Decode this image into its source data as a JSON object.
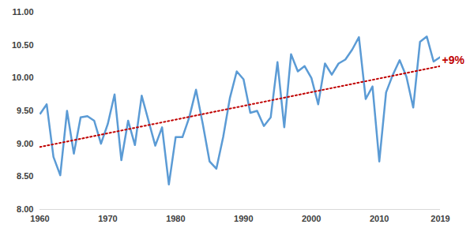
{
  "chart_data": {
    "type": "line",
    "x": [
      1960,
      1961,
      1962,
      1963,
      1964,
      1965,
      1966,
      1967,
      1968,
      1969,
      1970,
      1971,
      1972,
      1973,
      1974,
      1975,
      1976,
      1977,
      1978,
      1979,
      1980,
      1981,
      1982,
      1983,
      1984,
      1985,
      1986,
      1987,
      1988,
      1989,
      1990,
      1991,
      1992,
      1993,
      1994,
      1995,
      1996,
      1997,
      1998,
      1999,
      2000,
      2001,
      2002,
      2003,
      2004,
      2005,
      2006,
      2007,
      2008,
      2009,
      2010,
      2011,
      2012,
      2013,
      2014,
      2015,
      2016,
      2017,
      2018,
      2019
    ],
    "series": [
      {
        "color": "#5b9bd5",
        "line_style": "solid",
        "values": [
          9.45,
          9.6,
          8.8,
          8.52,
          9.5,
          8.85,
          9.4,
          9.42,
          9.35,
          9.0,
          9.3,
          9.75,
          8.75,
          9.35,
          8.98,
          9.73,
          9.35,
          8.97,
          9.25,
          8.38,
          9.1,
          9.1,
          9.4,
          9.82,
          9.3,
          8.73,
          8.62,
          9.1,
          9.7,
          10.1,
          9.98,
          9.47,
          9.5,
          9.27,
          9.4,
          10.24,
          9.25,
          10.36,
          10.1,
          10.18,
          10.0,
          9.6,
          10.22,
          10.05,
          10.22,
          10.28,
          10.43,
          10.62,
          9.68,
          9.87,
          8.73,
          9.78,
          10.05,
          10.27,
          10.02,
          9.55,
          10.55,
          10.63,
          10.25,
          10.32
        ]
      },
      {
        "type": "trend",
        "color": "#c00000",
        "line_style": "dotted",
        "values": [
          8.95,
          null,
          null,
          null,
          null,
          null,
          null,
          null,
          null,
          null,
          null,
          null,
          null,
          null,
          null,
          null,
          null,
          null,
          null,
          null,
          null,
          null,
          null,
          null,
          null,
          null,
          null,
          null,
          null,
          null,
          null,
          null,
          null,
          null,
          null,
          null,
          null,
          null,
          null,
          null,
          null,
          null,
          null,
          null,
          null,
          null,
          null,
          null,
          null,
          null,
          null,
          null,
          null,
          null,
          null,
          null,
          null,
          null,
          null,
          10.18
        ]
      }
    ],
    "annotations": [
      "+9%"
    ],
    "xlim": [
      1960,
      2019
    ],
    "xticks": [
      1960,
      1970,
      1980,
      1990,
      2000,
      2010,
      2019
    ],
    "ylim": [
      8,
      11
    ],
    "yticks": [
      {
        "value": 8,
        "label": "8.00"
      },
      {
        "value": 8.5,
        "label": "8.50"
      },
      {
        "value": 9,
        "label": "9.00"
      },
      {
        "value": 9.5,
        "label": "9.50"
      },
      {
        "value": 10,
        "label": "10.00"
      },
      {
        "value": 10.5,
        "label": "10.50"
      },
      {
        "value": 11,
        "label": "11.00"
      }
    ],
    "grid": false
  }
}
